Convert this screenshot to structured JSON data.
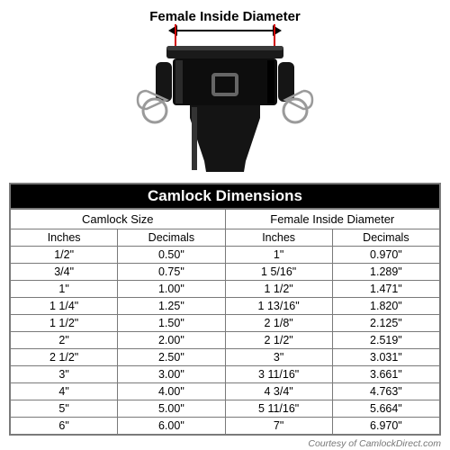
{
  "diagram": {
    "label": "Female Inside Diameter",
    "tick_color": "#d00000"
  },
  "table": {
    "title": "Camlock Dimensions",
    "group_headers": [
      "Camlock Size",
      "Female Inside Diameter"
    ],
    "sub_headers": [
      "Inches",
      "Decimals",
      "Inches",
      "Decimals"
    ],
    "rows": [
      [
        "1/2\"",
        "0.50\"",
        "1\"",
        "0.970\""
      ],
      [
        "3/4\"",
        "0.75\"",
        "1 5/16\"",
        "1.289\""
      ],
      [
        "1\"",
        "1.00\"",
        "1 1/2\"",
        "1.471\""
      ],
      [
        "1 1/4\"",
        "1.25\"",
        "1 13/16\"",
        "1.820\""
      ],
      [
        "1 1/2\"",
        "1.50\"",
        "2 1/8\"",
        "2.125\""
      ],
      [
        "2\"",
        "2.00\"",
        "2 1/2\"",
        "2.519\""
      ],
      [
        "2 1/2\"",
        "2.50\"",
        "3\"",
        "3.031\""
      ],
      [
        "3\"",
        "3.00\"",
        "3 11/16\"",
        "3.661\""
      ],
      [
        "4\"",
        "4.00\"",
        "4 3/4\"",
        "4.763\""
      ],
      [
        "5\"",
        "5.00\"",
        "5 11/16\"",
        "5.664\""
      ],
      [
        "6\"",
        "6.00\"",
        "7\"",
        "6.970\""
      ]
    ],
    "header_bg": "#000000",
    "header_fg": "#ffffff",
    "border_color": "#7a7a7a",
    "cell_bg": "#ffffff"
  },
  "courtesy": "Courtesy of CamlockDirect.com"
}
